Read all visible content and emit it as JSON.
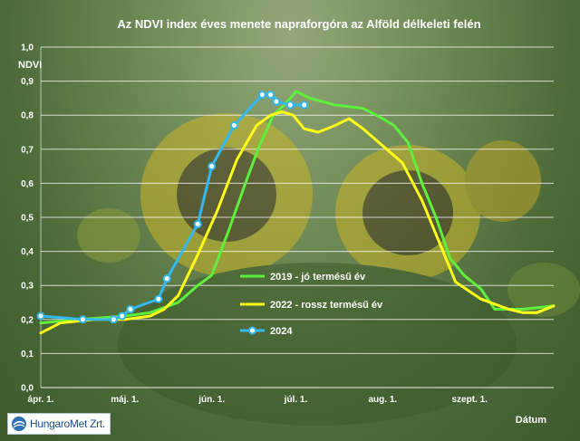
{
  "colors": {
    "green": "#5ef03c",
    "yellow": "#ffff1a",
    "blue": "#33b8f0"
  },
  "logo": {
    "text": "HungaroMet Zrt."
  },
  "chart_data": {
    "type": "line",
    "title": "Az NDVI index éves menete napraforgóra az Alföld délkeleti felén",
    "ylabel": "NDVI",
    "xlabel": "Dátum",
    "ylim": [
      0,
      1
    ],
    "yticks": [
      "0,0",
      "0,1",
      "0,2",
      "0,3",
      "0,4",
      "0,5",
      "0,6",
      "0,7",
      "0,8",
      "0,9",
      "1,0"
    ],
    "xlim": [
      "04-01",
      "10-01"
    ],
    "xticks": [
      {
        "date": "04-01",
        "label": "ápr. 1."
      },
      {
        "date": "05-01",
        "label": "máj. 1."
      },
      {
        "date": "06-01",
        "label": "jún. 1."
      },
      {
        "date": "07-01",
        "label": "júl. 1."
      },
      {
        "date": "08-01",
        "label": "aug. 1."
      },
      {
        "date": "09-01",
        "label": "szept. 1."
      }
    ],
    "grid": true,
    "legend": "center-right",
    "series": [
      {
        "name": "2019 - jó termésű év",
        "color": "#5ef03c",
        "marker": false,
        "points": [
          [
            "04-01",
            0.19
          ],
          [
            "04-15",
            0.2
          ],
          [
            "05-01",
            0.21
          ],
          [
            "05-10",
            0.22
          ],
          [
            "05-20",
            0.25
          ],
          [
            "05-27",
            0.3
          ],
          [
            "06-01",
            0.33
          ],
          [
            "06-07",
            0.46
          ],
          [
            "06-13",
            0.6
          ],
          [
            "06-18",
            0.71
          ],
          [
            "06-23",
            0.8
          ],
          [
            "06-28",
            0.84
          ],
          [
            "07-01",
            0.87
          ],
          [
            "07-06",
            0.85
          ],
          [
            "07-15",
            0.83
          ],
          [
            "07-25",
            0.82
          ],
          [
            "08-01",
            0.79
          ],
          [
            "08-05",
            0.77
          ],
          [
            "08-10",
            0.72
          ],
          [
            "08-15",
            0.6
          ],
          [
            "08-20",
            0.5
          ],
          [
            "08-25",
            0.38
          ],
          [
            "08-30",
            0.33
          ],
          [
            "09-05",
            0.29
          ],
          [
            "09-10",
            0.23
          ],
          [
            "09-20",
            0.23
          ],
          [
            "10-01",
            0.24
          ]
        ]
      },
      {
        "name": "2022 - rossz termésű év",
        "color": "#ffff1a",
        "marker": false,
        "points": [
          [
            "04-01",
            0.16
          ],
          [
            "04-08",
            0.19
          ],
          [
            "04-20",
            0.2
          ],
          [
            "05-01",
            0.2
          ],
          [
            "05-10",
            0.21
          ],
          [
            "05-15",
            0.23
          ],
          [
            "05-20",
            0.27
          ],
          [
            "05-27",
            0.39
          ],
          [
            "06-03",
            0.52
          ],
          [
            "06-10",
            0.67
          ],
          [
            "06-17",
            0.77
          ],
          [
            "06-22",
            0.8
          ],
          [
            "06-26",
            0.81
          ],
          [
            "06-30",
            0.8
          ],
          [
            "07-04",
            0.76
          ],
          [
            "07-09",
            0.75
          ],
          [
            "07-15",
            0.77
          ],
          [
            "07-20",
            0.79
          ],
          [
            "07-25",
            0.76
          ],
          [
            "08-01",
            0.71
          ],
          [
            "08-08",
            0.66
          ],
          [
            "08-15",
            0.55
          ],
          [
            "08-22",
            0.41
          ],
          [
            "08-27",
            0.31
          ],
          [
            "09-05",
            0.26
          ],
          [
            "09-15",
            0.23
          ],
          [
            "09-20",
            0.22
          ],
          [
            "09-25",
            0.22
          ],
          [
            "10-01",
            0.24
          ]
        ]
      },
      {
        "name": "2024",
        "color": "#33b8f0",
        "marker": true,
        "points": [
          [
            "04-01",
            0.21
          ],
          [
            "04-16",
            0.2
          ],
          [
            "04-27",
            0.2
          ],
          [
            "04-30",
            0.21
          ],
          [
            "05-03",
            0.23
          ],
          [
            "05-13",
            0.26
          ],
          [
            "05-16",
            0.32
          ],
          [
            "05-27",
            0.48
          ],
          [
            "06-01",
            0.65
          ],
          [
            "06-09",
            0.77
          ],
          [
            "06-19",
            0.86
          ],
          [
            "06-22",
            0.86
          ],
          [
            "06-24",
            0.84
          ],
          [
            "06-29",
            0.83
          ],
          [
            "07-04",
            0.83
          ]
        ]
      }
    ]
  }
}
